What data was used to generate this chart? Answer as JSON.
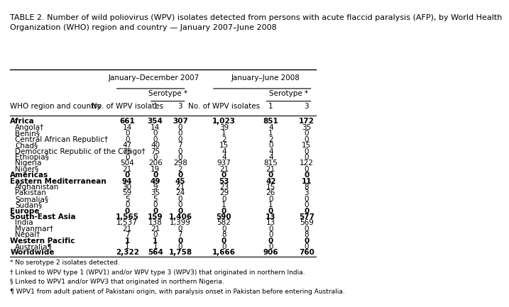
{
  "title": "TABLE 2. Number of wild poliovirus (WPV) isolates detected from persons with acute flaccid paralysis (AFP), by World Health\nOrganization (WHO) region and country — January 2007–June 2008",
  "col_header_jan_dec": "January–December 2007",
  "col_header_jan_jun": "January–June 2008",
  "serotype_label": "Serotype *",
  "col1_label": "WHO region and country",
  "col2_label": "No. of WPV isolates",
  "col3_label": "1",
  "col4_label": "3",
  "col5_label": "No. of WPV isolates",
  "col6_label": "1",
  "col7_label": "3",
  "rows": [
    {
      "name": "Africa",
      "bold": true,
      "indent": 0,
      "d07_tot": "661",
      "d07_1": "354",
      "d07_3": "307",
      "d08_tot": "1,023",
      "d08_1": "851",
      "d08_3": "172"
    },
    {
      "name": "Angola†",
      "bold": false,
      "indent": 1,
      "d07_tot": "14",
      "d07_1": "14",
      "d07_3": "0",
      "d08_tot": "39",
      "d08_1": "4",
      "d08_3": "35"
    },
    {
      "name": "Benin§",
      "bold": false,
      "indent": 1,
      "d07_tot": "0",
      "d07_1": "0",
      "d07_3": "0",
      "d08_tot": "1",
      "d08_1": "1",
      "d08_3": "0"
    },
    {
      "name": "Central African Republic†",
      "bold": false,
      "indent": 1,
      "d07_tot": "0",
      "d07_1": "0",
      "d07_3": "0",
      "d08_tot": "2",
      "d08_1": "2",
      "d08_3": "0"
    },
    {
      "name": "Chad§",
      "bold": false,
      "indent": 1,
      "d07_tot": "47",
      "d07_1": "40",
      "d07_3": "7",
      "d08_tot": "15",
      "d08_1": "0",
      "d08_3": "15"
    },
    {
      "name": "Democratic Republic of the Congo†",
      "bold": false,
      "indent": 1,
      "d07_tot": "75",
      "d07_1": "75",
      "d07_3": "0",
      "d08_tot": "4",
      "d08_1": "4",
      "d08_3": "0"
    },
    {
      "name": "Ethiopia§",
      "bold": false,
      "indent": 1,
      "d07_tot": "0",
      "d07_1": "0",
      "d07_3": "0",
      "d08_tot": "4",
      "d08_1": "4",
      "d08_3": "0"
    },
    {
      "name": "Nigeria",
      "bold": false,
      "indent": 1,
      "d07_tot": "504",
      "d07_1": "206",
      "d07_3": "298",
      "d08_tot": "937",
      "d08_1": "815",
      "d08_3": "122"
    },
    {
      "name": "Niger§",
      "bold": false,
      "indent": 1,
      "d07_tot": "21",
      "d07_1": "19",
      "d07_3": "2",
      "d08_tot": "21",
      "d08_1": "21",
      "d08_3": "0"
    },
    {
      "name": "Americas",
      "bold": true,
      "indent": 0,
      "d07_tot": "0",
      "d07_1": "0",
      "d07_3": "0",
      "d08_tot": "0",
      "d08_1": "0",
      "d08_3": "0"
    },
    {
      "name": "Eastern Mediterranean",
      "bold": true,
      "indent": 0,
      "d07_tot": "94",
      "d07_1": "49",
      "d07_3": "45",
      "d08_tot": "53",
      "d08_1": "42",
      "d08_3": "11"
    },
    {
      "name": "Afghanistan",
      "bold": false,
      "indent": 1,
      "d07_tot": "30",
      "d07_1": "9",
      "d07_3": "21",
      "d08_tot": "23",
      "d08_1": "15",
      "d08_3": "8"
    },
    {
      "name": "Pakistan",
      "bold": false,
      "indent": 1,
      "d07_tot": "59",
      "d07_1": "35",
      "d07_3": "24",
      "d08_tot": "29",
      "d08_1": "26",
      "d08_3": "3"
    },
    {
      "name": "Somalia§",
      "bold": false,
      "indent": 1,
      "d07_tot": "5",
      "d07_1": "5",
      "d07_3": "0",
      "d08_tot": "0",
      "d08_1": "0",
      "d08_3": "0"
    },
    {
      "name": "Sudan§",
      "bold": false,
      "indent": 1,
      "d07_tot": "0",
      "d07_1": "0",
      "d07_3": "0",
      "d08_tot": "1",
      "d08_1": "1",
      "d08_3": "0"
    },
    {
      "name": "Europe",
      "bold": true,
      "indent": 0,
      "d07_tot": "0",
      "d07_1": "0",
      "d07_3": "0",
      "d08_tot": "0",
      "d08_1": "0",
      "d08_3": "0"
    },
    {
      "name": "South-East Asia",
      "bold": true,
      "indent": 0,
      "d07_tot": "1,565",
      "d07_1": "159",
      "d07_3": "1,406",
      "d08_tot": "590",
      "d08_1": "13",
      "d08_3": "577"
    },
    {
      "name": "India",
      "bold": false,
      "indent": 1,
      "d07_tot": "1,537",
      "d07_1": "138",
      "d07_3": "1,399",
      "d08_tot": "582",
      "d08_1": "13",
      "d08_3": "569"
    },
    {
      "name": "Myanmar†",
      "bold": false,
      "indent": 1,
      "d07_tot": "21",
      "d07_1": "21",
      "d07_3": "0",
      "d08_tot": "0",
      "d08_1": "0",
      "d08_3": "0"
    },
    {
      "name": "Nepal†",
      "bold": false,
      "indent": 1,
      "d07_tot": "7",
      "d07_1": "0",
      "d07_3": "7",
      "d08_tot": "8",
      "d08_1": "0",
      "d08_3": "8"
    },
    {
      "name": "Western Pacific",
      "bold": true,
      "indent": 0,
      "d07_tot": "1",
      "d07_1": "1",
      "d07_3": "0",
      "d08_tot": "0",
      "d08_1": "0",
      "d08_3": "0"
    },
    {
      "name": "Australia¶",
      "bold": false,
      "indent": 1,
      "d07_tot": "1",
      "d07_1": "1",
      "d07_3": "0",
      "d08_tot": "0",
      "d08_1": "0",
      "d08_3": "0"
    },
    {
      "name": "Worldwide",
      "bold": true,
      "indent": 0,
      "d07_tot": "2,322",
      "d07_1": "564",
      "d07_3": "1,758",
      "d08_tot": "1,666",
      "d08_1": "906",
      "d08_3": "760"
    }
  ],
  "footnotes": [
    "* No serotype 2 isolates detected.",
    "† Linked to WPV type 1 (WPV1) and/or WPV type 3 (WPV3) that originated in northern India.",
    "§ Linked to WPV1 and/or WPV3 that originated in northern Nigeria.",
    "¶ WPV1 from adult patient of Pakistani origin, with paralysis onset in Pakistan before entering Australia."
  ],
  "bg_color": "#ffffff",
  "text_color": "#000000",
  "header_fontsize": 7.5,
  "data_fontsize": 7.5,
  "title_fontsize": 8.0,
  "footnote_fontsize": 6.5
}
